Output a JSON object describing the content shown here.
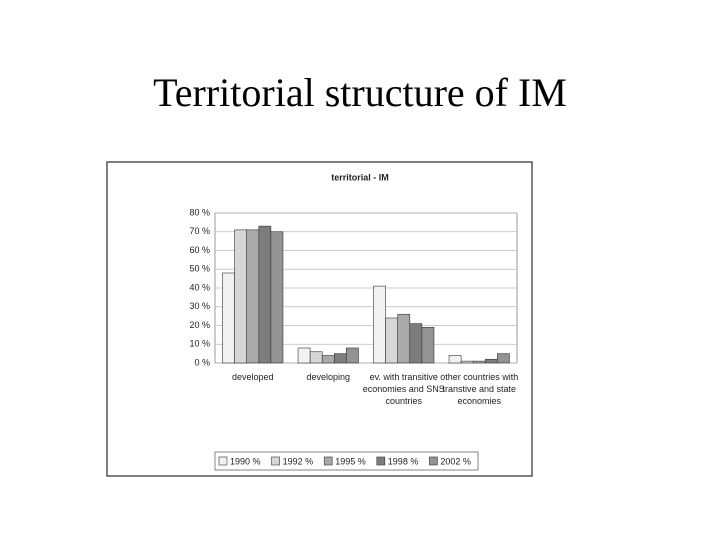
{
  "slide_title": "Territorial structure of IM",
  "chart_data": {
    "type": "bar",
    "title": "territorial - IM",
    "categories": [
      "developed",
      "developing",
      "ev. with transitive economies and SNS countries",
      "other countries with transtive and state economies"
    ],
    "series": [
      {
        "name": "1990 %",
        "color": "#f2f2f2",
        "values": [
          48,
          8,
          41,
          4
        ]
      },
      {
        "name": "1992 %",
        "color": "#d6d6d6",
        "values": [
          71,
          6,
          24,
          1
        ]
      },
      {
        "name": "1995 %",
        "color": "#a9a9a9",
        "values": [
          71,
          4,
          26,
          1
        ]
      },
      {
        "name": "1998 %",
        "color": "#7d7d7d",
        "values": [
          73,
          5,
          21,
          2
        ]
      },
      {
        "name": "2002 %",
        "color": "#939393",
        "values": [
          70,
          8,
          19,
          5
        ]
      }
    ],
    "ylim": [
      0,
      80
    ],
    "yticks": [
      {
        "value": 0,
        "label": "0 %"
      },
      {
        "value": 10,
        "label": "10 %"
      },
      {
        "value": 20,
        "label": "20 %"
      },
      {
        "value": 30,
        "label": "30 %"
      },
      {
        "value": 40,
        "label": "40 %"
      },
      {
        "value": 50,
        "label": "50 %"
      },
      {
        "value": 60,
        "label": "60 %"
      },
      {
        "value": 70,
        "label": "70 %"
      },
      {
        "value": 80,
        "label": "80 %"
      }
    ],
    "grid": true,
    "legend": "bottom"
  }
}
